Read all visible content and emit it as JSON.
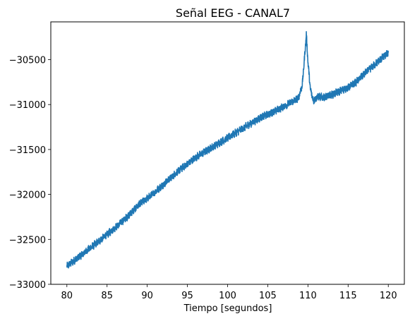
{
  "chart_data": {
    "type": "line",
    "title": "Señal EEG - CANAL7",
    "xlabel": "Tiempo [segundos]",
    "ylabel": "",
    "xlim": [
      78.0,
      122.0
    ],
    "ylim": [
      -33000,
      -30080
    ],
    "xticks": [
      80,
      85,
      90,
      95,
      100,
      105,
      110,
      115,
      120
    ],
    "xtick_labels": [
      "80",
      "85",
      "90",
      "95",
      "100",
      "105",
      "110",
      "115",
      "120"
    ],
    "yticks": [
      -33000,
      -32500,
      -32000,
      -31500,
      -31000,
      -30500
    ],
    "ytick_labels": [
      "−33000",
      "−32500",
      "−32000",
      "−31500",
      "−31000",
      "−30500"
    ],
    "grid": false,
    "legend": "none",
    "series": [
      {
        "color": "#1f77b4",
        "band_width": 70,
        "x": [
          80,
          82,
          84,
          86,
          87.5,
          89,
          90.5,
          92,
          94,
          96,
          98,
          100,
          102,
          104,
          106,
          108,
          108.8,
          109.3,
          109.6,
          109.8,
          110.0,
          110.3,
          110.7,
          111.2,
          112,
          113,
          114,
          115,
          116,
          117,
          118,
          119,
          120
        ],
        "y": [
          -32800,
          -32660,
          -32520,
          -32370,
          -32250,
          -32110,
          -32010,
          -31890,
          -31730,
          -31590,
          -31480,
          -31370,
          -31260,
          -31150,
          -31070,
          -30970,
          -30930,
          -30780,
          -30450,
          -30220,
          -30520,
          -30830,
          -30960,
          -30910,
          -30920,
          -30890,
          -30850,
          -30810,
          -30750,
          -30660,
          -30580,
          -30500,
          -30420
        ]
      }
    ]
  }
}
